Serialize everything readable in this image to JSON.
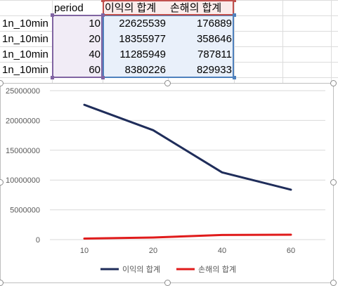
{
  "sheet": {
    "headers": {
      "period": "period",
      "profit_sum": "이익의 합계",
      "loss_sum": "손해의 합계"
    },
    "rows": [
      {
        "label": "1n_10min",
        "period": "10",
        "profit": "22625539",
        "loss": "176889"
      },
      {
        "label": "1n_10min",
        "period": "20",
        "profit": "18355977",
        "loss": "358646"
      },
      {
        "label": "1n_10min",
        "period": "40",
        "profit": "11285949",
        "loss": "787811"
      },
      {
        "label": "1n_10min",
        "period": "60",
        "profit": "8380226",
        "loss": "829933"
      }
    ]
  },
  "chart_data": {
    "type": "line",
    "categories": [
      "10",
      "20",
      "40",
      "60"
    ],
    "series": [
      {
        "name": "이익의 합계",
        "values": [
          22625539,
          18355977,
          11285949,
          8380226
        ],
        "color": "#1f2d5a"
      },
      {
        "name": "손해의 합계",
        "values": [
          176889,
          358646,
          787811,
          829933
        ],
        "color": "#e01b1b"
      }
    ],
    "ylim": [
      0,
      25000000
    ],
    "yticks": [
      "0",
      "5000000",
      "10000000",
      "15000000",
      "20000000",
      "25000000"
    ],
    "grid": true,
    "legend": "bottom"
  },
  "colors": {
    "period_selection": "#8064a2",
    "values_selection": "#4f81bd",
    "header_selection": "#c0504d"
  }
}
